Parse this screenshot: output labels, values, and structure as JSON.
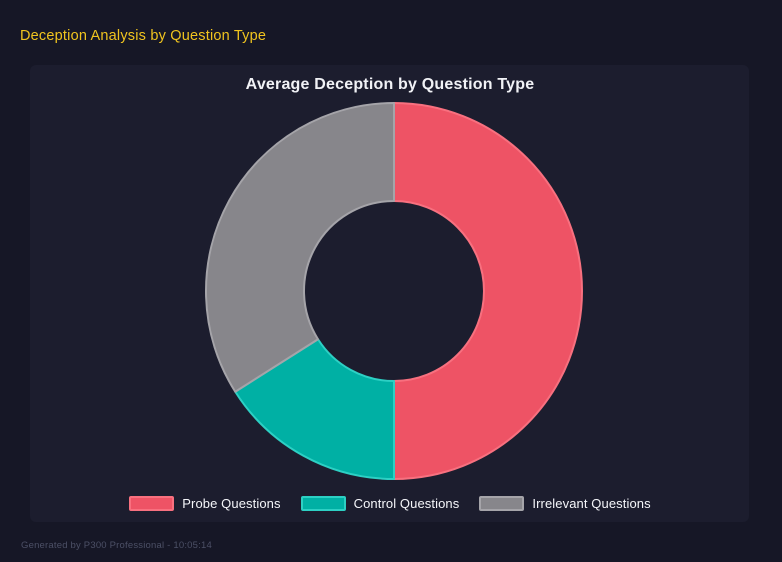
{
  "header": {
    "title": "Deception Analysis by Question Type",
    "title_color": "#f0c41f"
  },
  "chart_data": {
    "type": "pie",
    "variant": "donut",
    "title": "Average Deception by Question Type",
    "labels": [
      "Probe Questions",
      "Control Questions",
      "Irrelevant Questions"
    ],
    "values_pct": [
      50,
      16,
      34
    ],
    "colors": [
      "#ee5365",
      "#00b0a4",
      "#87868b"
    ],
    "border_colors": [
      "#f8707f",
      "#2dd0c4",
      "#a5a4a9"
    ],
    "start_angle_deg": 0,
    "direction": "clockwise",
    "cutout_pct": 48,
    "outer_radius_px": 188,
    "inner_radius_px": 90,
    "legend_position": "bottom",
    "background": "#1c1d2e"
  },
  "footer": {
    "text": "Generated by P300 Professional - 10:05:14"
  },
  "theme": {
    "page_background": "#161726",
    "panel_background": "#1c1d2e",
    "title_text": "#f1f2f6",
    "legend_text": "#f5f6fa",
    "footer_text": "#4c5066"
  }
}
